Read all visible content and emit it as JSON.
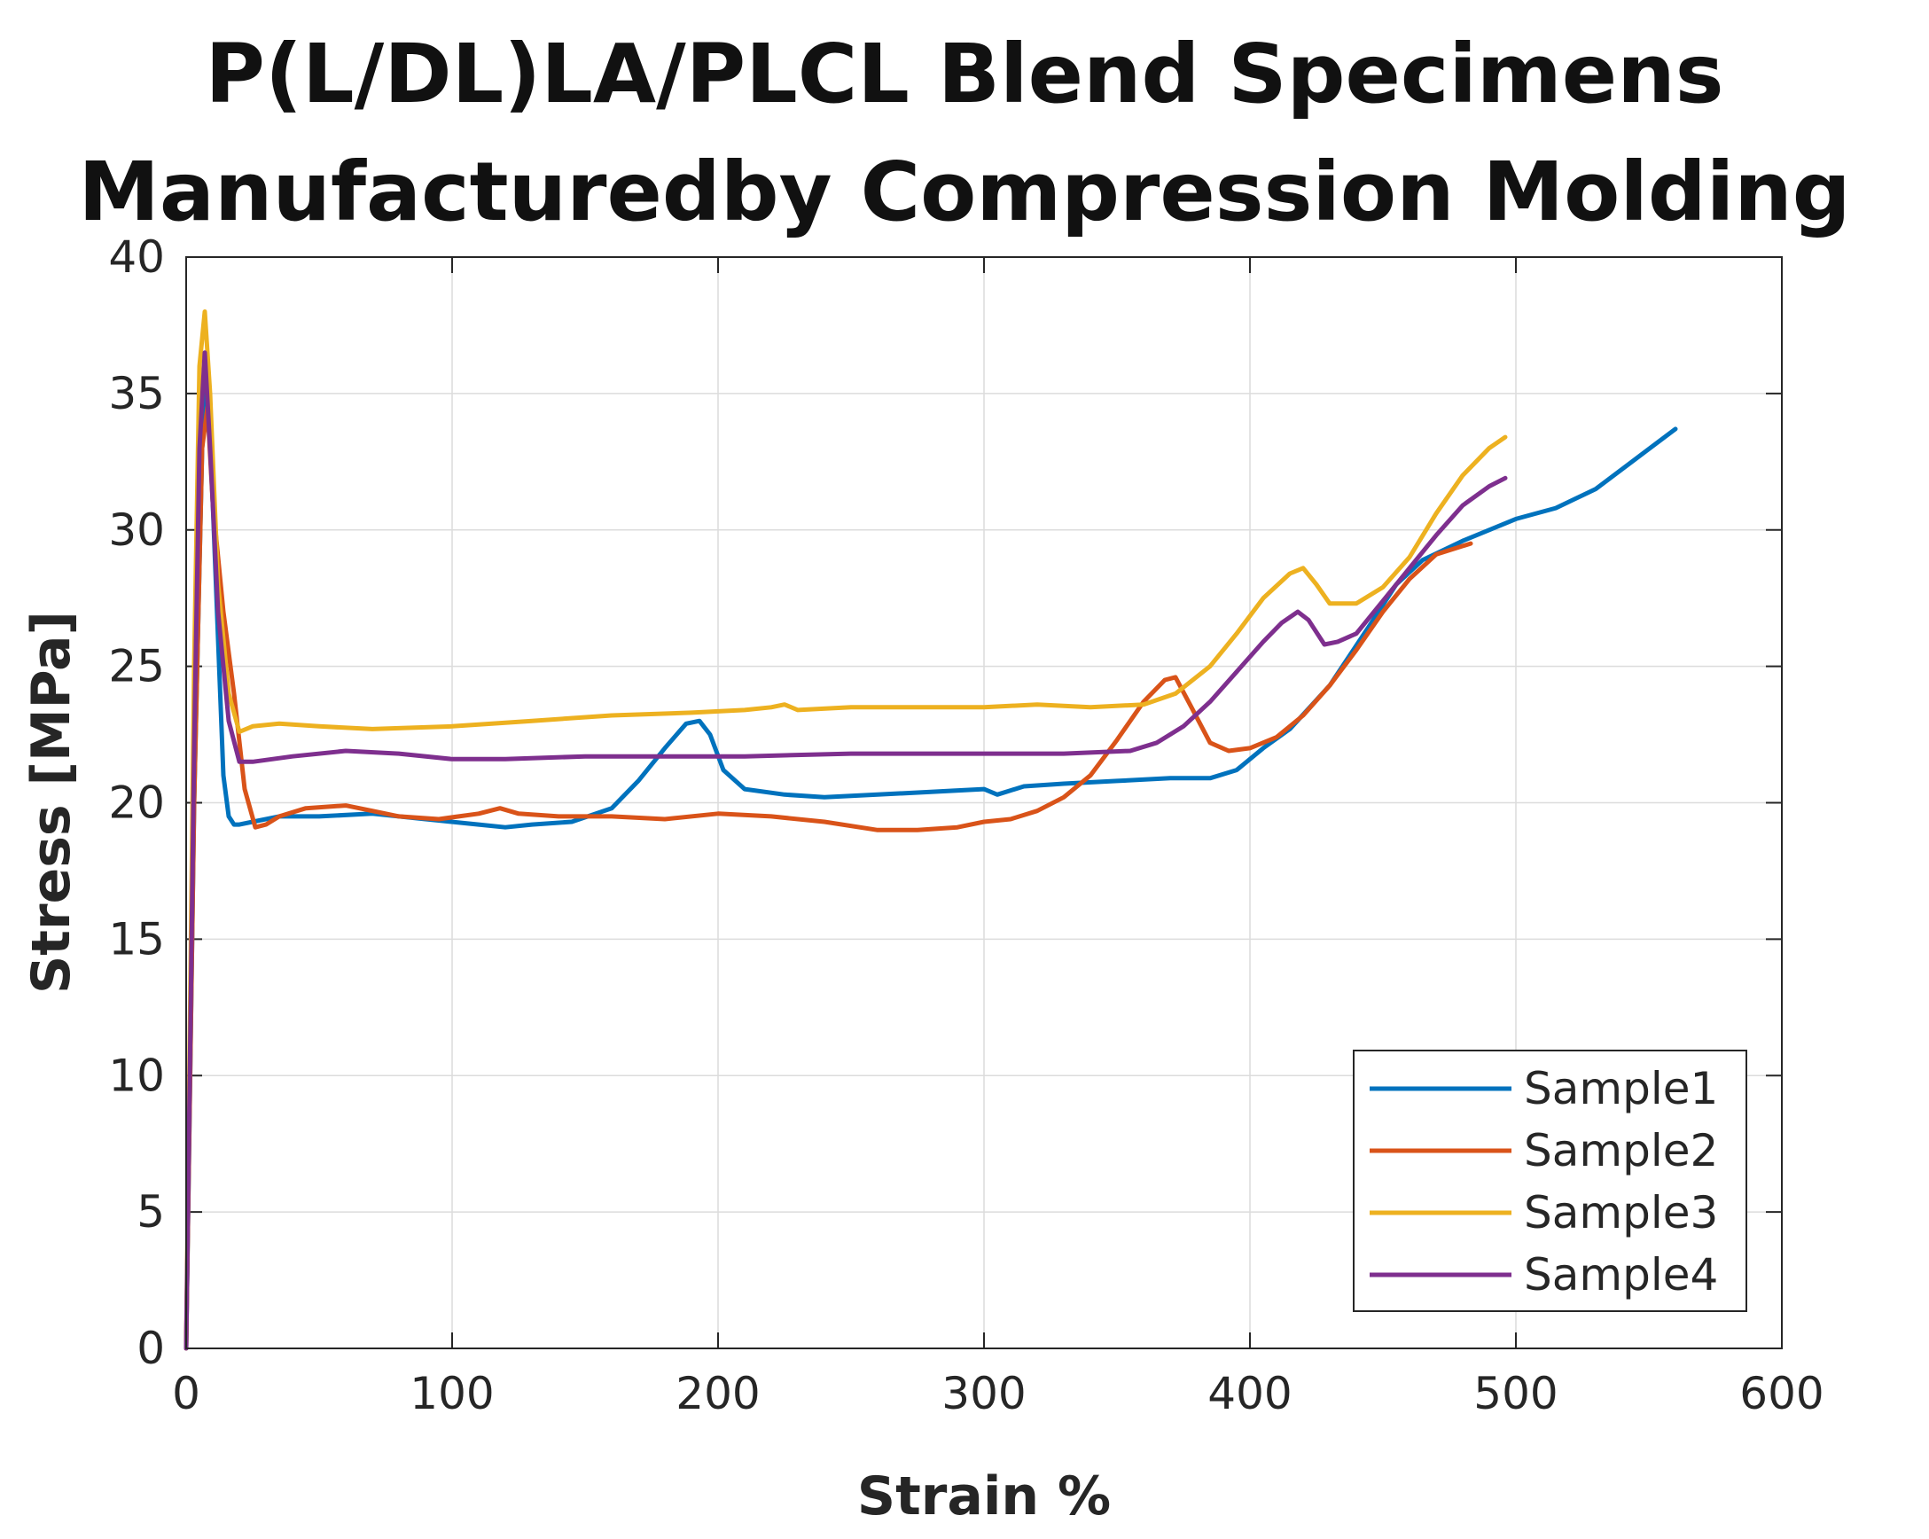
{
  "chart_data": {
    "type": "line",
    "title": [
      "P(L/DL)LA/PLCL Blend Specimens",
      "Manufacturedby Compression Molding"
    ],
    "xlabel": "Strain %",
    "ylabel": "Stress [MPa]",
    "xlim": [
      0,
      600
    ],
    "ylim": [
      0,
      40
    ],
    "xticks": [
      0,
      100,
      200,
      300,
      400,
      500,
      600
    ],
    "yticks": [
      0,
      5,
      10,
      15,
      20,
      25,
      30,
      35,
      40
    ],
    "grid": true,
    "legend_position": "lower-right",
    "series": [
      {
        "name": "Sample1",
        "color": "#0072BD",
        "x": [
          0,
          3,
          6,
          8,
          10,
          12,
          14,
          16,
          18,
          20,
          25,
          35,
          50,
          70,
          90,
          110,
          120,
          130,
          145,
          160,
          170,
          180,
          188,
          193,
          197,
          202,
          210,
          225,
          240,
          260,
          280,
          300,
          305,
          315,
          330,
          350,
          370,
          385,
          395,
          405,
          415,
          430,
          445,
          455,
          465,
          480,
          500,
          515,
          530,
          545,
          560
        ],
        "y": [
          0,
          20,
          33,
          36,
          31,
          26,
          21,
          19.5,
          19.2,
          19.2,
          19.3,
          19.5,
          19.5,
          19.6,
          19.4,
          19.2,
          19.1,
          19.2,
          19.3,
          19.8,
          20.8,
          22.0,
          22.9,
          23.0,
          22.5,
          21.2,
          20.5,
          20.3,
          20.2,
          20.3,
          20.4,
          20.5,
          20.3,
          20.6,
          20.7,
          20.8,
          20.9,
          20.9,
          21.2,
          22.0,
          22.7,
          24.3,
          26.5,
          28.0,
          28.9,
          29.6,
          30.4,
          30.8,
          31.5,
          32.6,
          33.7
        ]
      },
      {
        "name": "Sample2",
        "color": "#D95319",
        "x": [
          0,
          3,
          6,
          8,
          10,
          14,
          18,
          22,
          26,
          30,
          35,
          45,
          60,
          70,
          80,
          95,
          110,
          118,
          125,
          140,
          160,
          180,
          200,
          220,
          240,
          260,
          275,
          290,
          300,
          310,
          320,
          330,
          340,
          350,
          360,
          368,
          372,
          378,
          385,
          392,
          400,
          410,
          420,
          430,
          440,
          450,
          460,
          470,
          483
        ],
        "y": [
          0,
          20,
          33,
          34.5,
          31,
          27,
          24,
          20.5,
          19.1,
          19.2,
          19.5,
          19.8,
          19.9,
          19.7,
          19.5,
          19.4,
          19.6,
          19.8,
          19.6,
          19.5,
          19.5,
          19.4,
          19.6,
          19.5,
          19.3,
          19.0,
          19.0,
          19.1,
          19.3,
          19.4,
          19.7,
          20.2,
          21.0,
          22.3,
          23.7,
          24.5,
          24.6,
          23.5,
          22.2,
          21.9,
          22.0,
          22.4,
          23.2,
          24.3,
          25.6,
          27.0,
          28.2,
          29.1,
          29.5
        ]
      },
      {
        "name": "Sample3",
        "color": "#EDB120",
        "x": [
          0,
          3,
          5,
          7,
          9,
          12,
          16,
          20,
          25,
          35,
          50,
          70,
          100,
          130,
          160,
          190,
          210,
          220,
          225,
          230,
          250,
          280,
          300,
          320,
          340,
          360,
          372,
          385,
          395,
          405,
          415,
          420,
          425,
          430,
          440,
          450,
          460,
          470,
          480,
          490,
          496
        ],
        "y": [
          0,
          25,
          36,
          38,
          35,
          28,
          24,
          22.6,
          22.8,
          22.9,
          22.8,
          22.7,
          22.8,
          23.0,
          23.2,
          23.3,
          23.4,
          23.5,
          23.6,
          23.4,
          23.5,
          23.5,
          23.5,
          23.6,
          23.5,
          23.6,
          24.0,
          25.0,
          26.2,
          27.5,
          28.4,
          28.6,
          28.0,
          27.3,
          27.3,
          27.9,
          29.0,
          30.6,
          32.0,
          33.0,
          33.4
        ]
      },
      {
        "name": "Sample4",
        "color": "#7E2F8E",
        "x": [
          0,
          3,
          5,
          7,
          9,
          12,
          16,
          20,
          25,
          40,
          60,
          80,
          100,
          120,
          150,
          180,
          210,
          250,
          290,
          330,
          355,
          365,
          375,
          385,
          395,
          405,
          412,
          418,
          422,
          428,
          433,
          440,
          450,
          460,
          470,
          480,
          490,
          496
        ],
        "y": [
          0,
          22,
          33,
          36.5,
          33,
          27,
          23,
          21.5,
          21.5,
          21.7,
          21.9,
          21.8,
          21.6,
          21.6,
          21.7,
          21.7,
          21.7,
          21.8,
          21.8,
          21.8,
          21.9,
          22.2,
          22.8,
          23.7,
          24.8,
          25.9,
          26.6,
          27.0,
          26.7,
          25.8,
          25.9,
          26.2,
          27.4,
          28.6,
          29.8,
          30.9,
          31.6,
          31.9
        ]
      }
    ]
  }
}
